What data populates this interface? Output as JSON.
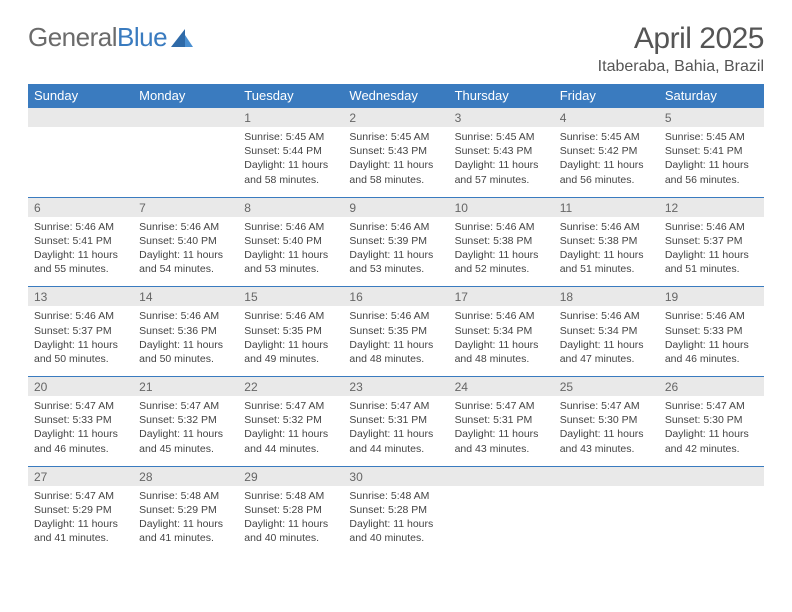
{
  "brand": {
    "general": "General",
    "blue": "Blue"
  },
  "header": {
    "title": "April 2025",
    "location": "Itaberaba, Bahia, Brazil"
  },
  "colors": {
    "header_bg": "#3a7bbf",
    "header_text": "#ffffff",
    "daynum_bg": "#e9e9e9",
    "border": "#3a7bbf",
    "body_text": "#444444",
    "title_text": "#555555"
  },
  "daysOfWeek": [
    "Sunday",
    "Monday",
    "Tuesday",
    "Wednesday",
    "Thursday",
    "Friday",
    "Saturday"
  ],
  "weeks": [
    [
      {
        "num": "",
        "lines": []
      },
      {
        "num": "",
        "lines": []
      },
      {
        "num": "1",
        "lines": [
          "Sunrise: 5:45 AM",
          "Sunset: 5:44 PM",
          "Daylight: 11 hours",
          "and 58 minutes."
        ]
      },
      {
        "num": "2",
        "lines": [
          "Sunrise: 5:45 AM",
          "Sunset: 5:43 PM",
          "Daylight: 11 hours",
          "and 58 minutes."
        ]
      },
      {
        "num": "3",
        "lines": [
          "Sunrise: 5:45 AM",
          "Sunset: 5:43 PM",
          "Daylight: 11 hours",
          "and 57 minutes."
        ]
      },
      {
        "num": "4",
        "lines": [
          "Sunrise: 5:45 AM",
          "Sunset: 5:42 PM",
          "Daylight: 11 hours",
          "and 56 minutes."
        ]
      },
      {
        "num": "5",
        "lines": [
          "Sunrise: 5:45 AM",
          "Sunset: 5:41 PM",
          "Daylight: 11 hours",
          "and 56 minutes."
        ]
      }
    ],
    [
      {
        "num": "6",
        "lines": [
          "Sunrise: 5:46 AM",
          "Sunset: 5:41 PM",
          "Daylight: 11 hours",
          "and 55 minutes."
        ]
      },
      {
        "num": "7",
        "lines": [
          "Sunrise: 5:46 AM",
          "Sunset: 5:40 PM",
          "Daylight: 11 hours",
          "and 54 minutes."
        ]
      },
      {
        "num": "8",
        "lines": [
          "Sunrise: 5:46 AM",
          "Sunset: 5:40 PM",
          "Daylight: 11 hours",
          "and 53 minutes."
        ]
      },
      {
        "num": "9",
        "lines": [
          "Sunrise: 5:46 AM",
          "Sunset: 5:39 PM",
          "Daylight: 11 hours",
          "and 53 minutes."
        ]
      },
      {
        "num": "10",
        "lines": [
          "Sunrise: 5:46 AM",
          "Sunset: 5:38 PM",
          "Daylight: 11 hours",
          "and 52 minutes."
        ]
      },
      {
        "num": "11",
        "lines": [
          "Sunrise: 5:46 AM",
          "Sunset: 5:38 PM",
          "Daylight: 11 hours",
          "and 51 minutes."
        ]
      },
      {
        "num": "12",
        "lines": [
          "Sunrise: 5:46 AM",
          "Sunset: 5:37 PM",
          "Daylight: 11 hours",
          "and 51 minutes."
        ]
      }
    ],
    [
      {
        "num": "13",
        "lines": [
          "Sunrise: 5:46 AM",
          "Sunset: 5:37 PM",
          "Daylight: 11 hours",
          "and 50 minutes."
        ]
      },
      {
        "num": "14",
        "lines": [
          "Sunrise: 5:46 AM",
          "Sunset: 5:36 PM",
          "Daylight: 11 hours",
          "and 50 minutes."
        ]
      },
      {
        "num": "15",
        "lines": [
          "Sunrise: 5:46 AM",
          "Sunset: 5:35 PM",
          "Daylight: 11 hours",
          "and 49 minutes."
        ]
      },
      {
        "num": "16",
        "lines": [
          "Sunrise: 5:46 AM",
          "Sunset: 5:35 PM",
          "Daylight: 11 hours",
          "and 48 minutes."
        ]
      },
      {
        "num": "17",
        "lines": [
          "Sunrise: 5:46 AM",
          "Sunset: 5:34 PM",
          "Daylight: 11 hours",
          "and 48 minutes."
        ]
      },
      {
        "num": "18",
        "lines": [
          "Sunrise: 5:46 AM",
          "Sunset: 5:34 PM",
          "Daylight: 11 hours",
          "and 47 minutes."
        ]
      },
      {
        "num": "19",
        "lines": [
          "Sunrise: 5:46 AM",
          "Sunset: 5:33 PM",
          "Daylight: 11 hours",
          "and 46 minutes."
        ]
      }
    ],
    [
      {
        "num": "20",
        "lines": [
          "Sunrise: 5:47 AM",
          "Sunset: 5:33 PM",
          "Daylight: 11 hours",
          "and 46 minutes."
        ]
      },
      {
        "num": "21",
        "lines": [
          "Sunrise: 5:47 AM",
          "Sunset: 5:32 PM",
          "Daylight: 11 hours",
          "and 45 minutes."
        ]
      },
      {
        "num": "22",
        "lines": [
          "Sunrise: 5:47 AM",
          "Sunset: 5:32 PM",
          "Daylight: 11 hours",
          "and 44 minutes."
        ]
      },
      {
        "num": "23",
        "lines": [
          "Sunrise: 5:47 AM",
          "Sunset: 5:31 PM",
          "Daylight: 11 hours",
          "and 44 minutes."
        ]
      },
      {
        "num": "24",
        "lines": [
          "Sunrise: 5:47 AM",
          "Sunset: 5:31 PM",
          "Daylight: 11 hours",
          "and 43 minutes."
        ]
      },
      {
        "num": "25",
        "lines": [
          "Sunrise: 5:47 AM",
          "Sunset: 5:30 PM",
          "Daylight: 11 hours",
          "and 43 minutes."
        ]
      },
      {
        "num": "26",
        "lines": [
          "Sunrise: 5:47 AM",
          "Sunset: 5:30 PM",
          "Daylight: 11 hours",
          "and 42 minutes."
        ]
      }
    ],
    [
      {
        "num": "27",
        "lines": [
          "Sunrise: 5:47 AM",
          "Sunset: 5:29 PM",
          "Daylight: 11 hours",
          "and 41 minutes."
        ]
      },
      {
        "num": "28",
        "lines": [
          "Sunrise: 5:48 AM",
          "Sunset: 5:29 PM",
          "Daylight: 11 hours",
          "and 41 minutes."
        ]
      },
      {
        "num": "29",
        "lines": [
          "Sunrise: 5:48 AM",
          "Sunset: 5:28 PM",
          "Daylight: 11 hours",
          "and 40 minutes."
        ]
      },
      {
        "num": "30",
        "lines": [
          "Sunrise: 5:48 AM",
          "Sunset: 5:28 PM",
          "Daylight: 11 hours",
          "and 40 minutes."
        ]
      },
      {
        "num": "",
        "lines": []
      },
      {
        "num": "",
        "lines": []
      },
      {
        "num": "",
        "lines": []
      }
    ]
  ]
}
